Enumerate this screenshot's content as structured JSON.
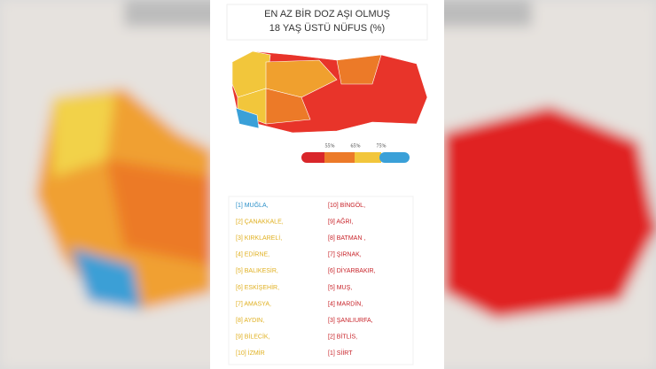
{
  "header": {
    "title_line1": "EN AZ BİR DOZ AŞI OLMUŞ",
    "title_line2": "18 YAŞ ÜSTÜ NÜFUS (%)"
  },
  "legend": {
    "labels": [
      "55%",
      "65%",
      "75%"
    ]
  },
  "lists": {
    "highest": [
      "[1] MUĞLA,",
      "[2] ÇANAKKALE,",
      "[3] KIRKLARELİ,",
      "[4] EDİRNE,",
      "[5] BALIKESİR,",
      "[6] ESKİŞEHİR,",
      "[7] AMASYA,",
      "[8] AYDIN,",
      "[9] BİLECİK,",
      "[10] İZMİR"
    ],
    "lowest": [
      "[10] BİNGÖL,",
      "[9] AĞRI,",
      "[8] BATMAN ,",
      "[7] ŞIRNAK,",
      "[6] DİYARBAKIR,",
      "[5] MUŞ,",
      "[4] MARDİN,",
      "[3] ŞANLIURFA,",
      "[2] BİTLİS,",
      "[1] SİİRT"
    ]
  }
}
